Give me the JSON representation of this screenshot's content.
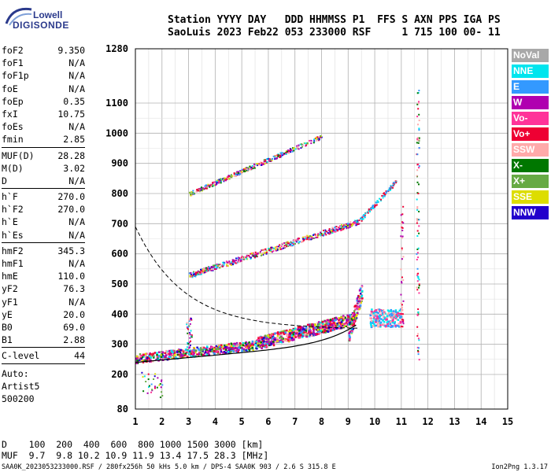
{
  "logo": {
    "line1": "Lowell",
    "line2": "DIGISONDE"
  },
  "header": {
    "line1": "Station YYYY DAY   DDD HHMMSS P1  FFS S AXN PPS IGA PS",
    "line2": "SaoLuis 2023 Feb22 053 233000 RSF     1 715 100 00- 11"
  },
  "params_group1": [
    {
      "k": "foF2",
      "v": "9.350"
    },
    {
      "k": "foF1",
      "v": "N/A"
    },
    {
      "k": "foF1p",
      "v": "N/A"
    },
    {
      "k": "foE",
      "v": "N/A"
    },
    {
      "k": "foEp",
      "v": "0.35"
    },
    {
      "k": "fxI",
      "v": "10.75"
    },
    {
      "k": "foEs",
      "v": "N/A"
    },
    {
      "k": "fmin",
      "v": "2.85"
    }
  ],
  "params_group2": [
    {
      "k": "MUF(D)",
      "v": "28.28"
    },
    {
      "k": "M(D)",
      "v": "3.02"
    },
    {
      "k": "D",
      "v": "N/A"
    }
  ],
  "params_group3": [
    {
      "k": "h`F",
      "v": "270.0"
    },
    {
      "k": "h`F2",
      "v": "270.0"
    },
    {
      "k": "h`E",
      "v": "N/A"
    },
    {
      "k": "h`Es",
      "v": "N/A"
    }
  ],
  "params_group4": [
    {
      "k": "hmF2",
      "v": "345.3"
    },
    {
      "k": "hmF1",
      "v": "N/A"
    },
    {
      "k": "hmE",
      "v": "110.0"
    },
    {
      "k": "yF2",
      "v": "76.3"
    },
    {
      "k": "yF1",
      "v": "N/A"
    },
    {
      "k": "yE",
      "v": "20.0"
    },
    {
      "k": "B0",
      "v": "69.0"
    },
    {
      "k": "B1",
      "v": "2.88"
    }
  ],
  "clevel": {
    "k": "C-level",
    "v": "44"
  },
  "auto": [
    "Auto:",
    "Artist5",
    "500200"
  ],
  "legend": [
    {
      "label": "NoVal",
      "color": "#a8a8a8"
    },
    {
      "label": "NNE",
      "color": "#00e5ee"
    },
    {
      "label": "E",
      "color": "#3399ff"
    },
    {
      "label": "W",
      "color": "#b000b0"
    },
    {
      "label": "Vo-",
      "color": "#ff3399"
    },
    {
      "label": "Vo+",
      "color": "#ee0033"
    },
    {
      "label": "SSW",
      "color": "#ffaaaa"
    },
    {
      "label": "X-",
      "color": "#007700"
    },
    {
      "label": "X+",
      "color": "#66aa44"
    },
    {
      "label": "SSE",
      "color": "#dddd00"
    },
    {
      "label": "NNW",
      "color": "#2200cc"
    }
  ],
  "axes": {
    "x_ticks": [
      "1",
      "2",
      "3",
      "4",
      "5",
      "6",
      "7",
      "8",
      "9",
      "10",
      "11",
      "12",
      "13",
      "14",
      "15"
    ],
    "y_ticks": [
      "80",
      "200",
      "300",
      "400",
      "500",
      "600",
      "700",
      "800",
      "900",
      "1000",
      "1100",
      "1280"
    ]
  },
  "bottom": {
    "line1": "D    100  200  400  600  800 1000 1500 3000 [km]",
    "line2": "MUF  9.7  9.8 10.2 10.9 11.9 13.4 17.5 28.3 [MHz]"
  },
  "footer_left": "SAA0K_2023053233000.RSF / 280fx256h 50 kHs 5.0 km / DPS-4 SAA0K 903 / 2.6 S 315.8 E",
  "footer_right": "Ion2Png 1.3.17"
}
